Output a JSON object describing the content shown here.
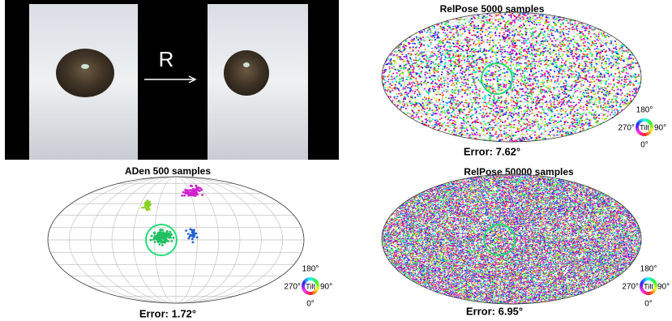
{
  "figure": {
    "photo": {
      "rotation_label": "R"
    },
    "panels": [
      {
        "title": "RelPose 5000 samples",
        "error": "Error: 7.62°",
        "legend": {
          "top": "180°",
          "left": "270°",
          "center": "Tilt",
          "right": "90°",
          "bottom": "0°"
        }
      },
      {
        "title": "ADen 500 samples",
        "error": "Error: 1.72°",
        "legend": {
          "top": "180°",
          "left": "270°",
          "center": "Tilt",
          "right": "90°",
          "bottom": "0°"
        }
      },
      {
        "title": "RelPose 50000 samples",
        "error": "Error: 6.95°",
        "legend": {
          "top": "180°",
          "left": "270°",
          "center": "Tilt",
          "right": "90°",
          "bottom": "0°"
        }
      }
    ]
  }
}
